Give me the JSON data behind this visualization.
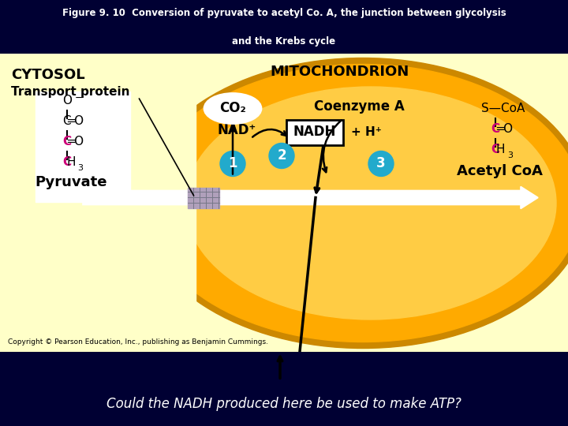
{
  "title_line1": "Figure 9. 10  Conversion of pyruvate to acetyl Co. A, the junction between glycolysis",
  "title_line2": "and the Krebs cycle",
  "title_bg": "#000033",
  "title_color": "#ffffff",
  "main_bg": "#ffffc8",
  "mito_outer_color": "#cc8800",
  "mito_mid_color": "#ffaa00",
  "mito_inner_color": "#ffcc44",
  "bottom_bg": "#3355bb",
  "cytosol_label": "CYTOSOL",
  "mito_label": "MITOCHONDRION",
  "transport_protein": "Transport protein",
  "pyruvate_label": "Pyruvate",
  "acetyl_coa_label": "Acetyl CoA",
  "coenzyme_a_label": "Coenzyme A",
  "co2_label": "CO₂",
  "nad_label": "NAD⁺",
  "nadh_label": "NADH",
  "hplus_label": "+ H⁺",
  "step1_label": "1",
  "step2_label": "2",
  "step3_label": "3",
  "arrow_color": "#000000",
  "step_circle_color": "#22aacc",
  "step_text_color": "#ffffff",
  "copyright_text": "Copyright © Pearson Education, Inc., publishing as Benjamin Cummings.",
  "bottom_question": "Could the NADH produced here be used to make ATP?",
  "question_color": "#ffffff",
  "question_fontsize": 12,
  "magenta": "#cc0077"
}
